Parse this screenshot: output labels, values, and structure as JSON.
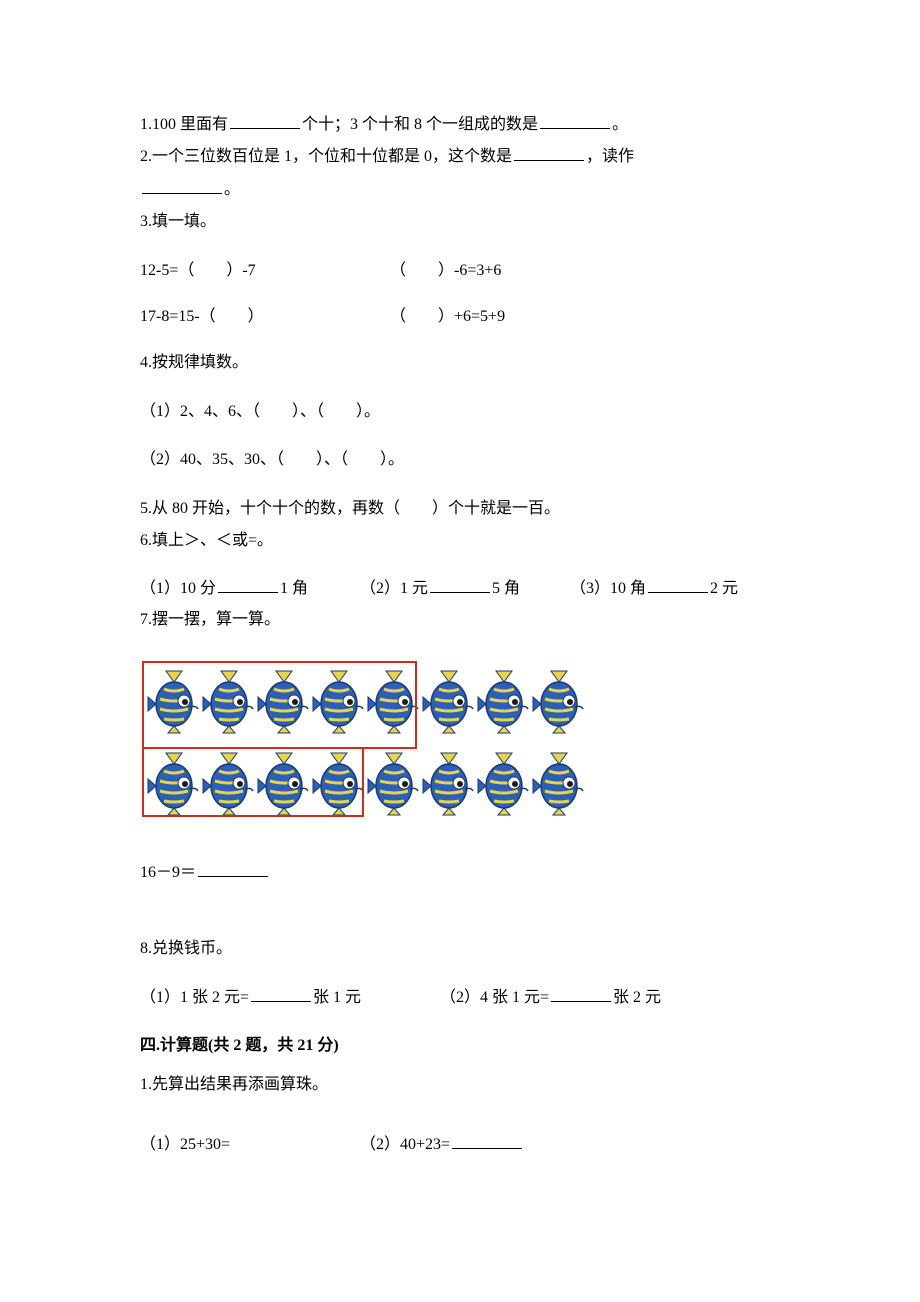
{
  "q1": {
    "text_a": "1.100 里面有",
    "text_b": "个十；3 个十和 8 个一组成的数是",
    "text_c": "。"
  },
  "q2": {
    "text_a": "2.一个三位数百位是 1，个位和十位都是 0，这个数是",
    "text_b": "，读作",
    "text_c": "。"
  },
  "q3": {
    "title": "3.填一填。",
    "eq1": "12-5=（　　）-7",
    "eq2": "（　　）-6=3+6",
    "eq3": "17-8=15-（　　）",
    "eq4": "（　　）+6=5+9"
  },
  "q4": {
    "title": "4.按规律填数。",
    "line1": "（1）2、4、6、（　　）、（　　）。",
    "line2": "（2）40、35、30、（　　）、（　　）。"
  },
  "q5": {
    "text": "5.从 80 开始，十个十个的数，再数（　　）个十就是一百。"
  },
  "q6": {
    "title": "6.填上＞、＜或=。",
    "p1a": "（1）10 分",
    "p1b": "1 角",
    "p2a": "（2）1 元",
    "p2b": "5 角",
    "p3a": "（3）10 角",
    "p3b": "2 元"
  },
  "q7": {
    "title": "7.摆一摆，算一算。",
    "fish": {
      "row1_count": 8,
      "row2_count": 8,
      "colors": {
        "body_fill": "#2b5fb8",
        "stripe": "#e8d44a",
        "eye_outer": "#ffffff",
        "eye_inner": "#1a1a1a",
        "outline": "#1d3a6e"
      }
    },
    "eq": "16－9＝"
  },
  "q8": {
    "title": "8.兑换钱币。",
    "p1a": "（1）1 张 2 元=",
    "p1b": "张 1 元",
    "p2a": "（2）4 张 1 元=",
    "p2b": "张 2 元"
  },
  "section4": {
    "title": "四.计算题(共 2 题，共 21 分)",
    "q1": "1.先算出结果再添画算珠。",
    "eq1": "（1）25+30=",
    "eq2a": "（2）40+23=",
    "eq2_blank": true
  }
}
